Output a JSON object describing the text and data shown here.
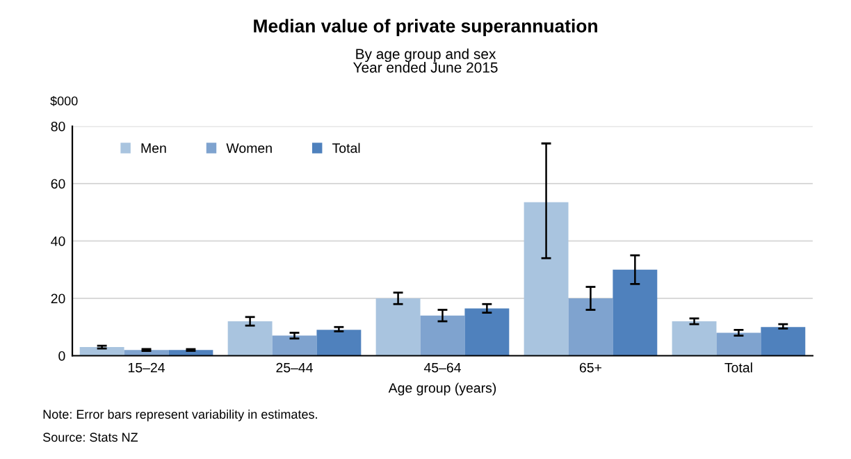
{
  "chart_data": {
    "type": "bar",
    "title": "Median value of private superannuation",
    "subtitle": "By age group and sex\nYear ended June 2015",
    "xlabel": "Age group (years)",
    "ylabel": "$000",
    "categories": [
      "15–24",
      "25–44",
      "45–64",
      "65+",
      "Total"
    ],
    "series": [
      {
        "name": "Men",
        "color": "#a9c4df",
        "values": [
          3,
          12,
          20,
          53.5,
          12
        ],
        "errors": [
          [
            2.5,
            3.5
          ],
          [
            10.5,
            13.5
          ],
          [
            18,
            22
          ],
          [
            34,
            74
          ],
          [
            11,
            13
          ]
        ]
      },
      {
        "name": "Women",
        "color": "#7fa3cf",
        "values": [
          2,
          7,
          14,
          20,
          8
        ],
        "errors": [
          [
            1.7,
            2.3
          ],
          [
            6,
            8
          ],
          [
            12,
            16
          ],
          [
            16,
            24
          ],
          [
            7,
            9
          ]
        ]
      },
      {
        "name": "Total",
        "color": "#4f81bd",
        "values": [
          2,
          9,
          16.5,
          30,
          10
        ],
        "errors": [
          [
            1.7,
            2.3
          ],
          [
            8.5,
            10
          ],
          [
            15,
            18
          ],
          [
            25,
            35
          ],
          [
            9.5,
            11
          ]
        ]
      }
    ],
    "ylim": [
      0,
      80
    ],
    "yticks": [
      0,
      20,
      40,
      60,
      80
    ],
    "grid": "y",
    "legend": "top left",
    "annotations": [
      "Note: Error bars represent variability in estimates.",
      "Source: Stats NZ"
    ]
  }
}
